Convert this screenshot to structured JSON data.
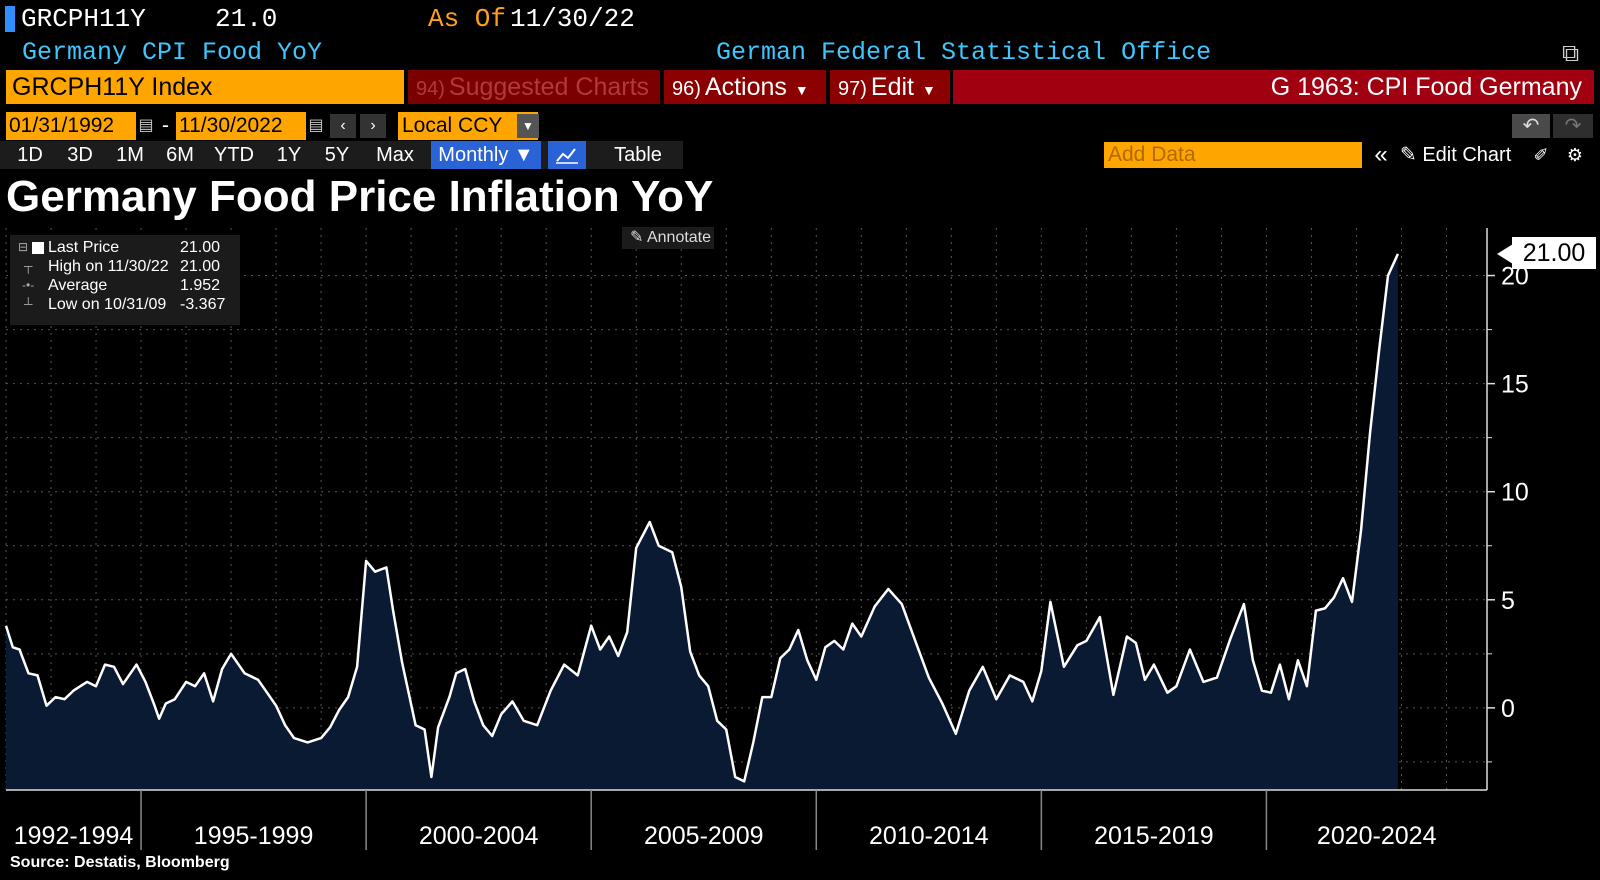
{
  "header": {
    "ticker": "GRCPH11Y",
    "last_value": "21.0",
    "as_of_label": "As Of",
    "as_of_date": "11/30/22",
    "description": "Germany CPI Food YoY",
    "source_org": "German Federal Statistical Office"
  },
  "menu": {
    "security": "GRCPH11Y Index",
    "suggested_num": "94)",
    "suggested": "Suggested Charts",
    "actions_num": "96)",
    "actions": "Actions",
    "edit_num": "97)",
    "edit": "Edit",
    "chart_id": "G 1963: CPI Food Germany"
  },
  "controls": {
    "start_date": "01/31/1992",
    "end_date": "11/30/2022",
    "currency": "Local CCY",
    "timeframes": [
      "1D",
      "3D",
      "1M",
      "6M",
      "YTD",
      "1Y",
      "5Y",
      "Max"
    ],
    "frequency": "Monthly ▼",
    "table": "Table",
    "add_data_placeholder": "Add Data",
    "edit_chart": "Edit Chart"
  },
  "legend": {
    "last_price_label": "Last Price",
    "last_price": "21.00",
    "high_label": "High on 11/30/22",
    "high": "21.00",
    "avg_label": "Average",
    "avg": "1.952",
    "low_label": "Low on 10/31/09",
    "low": "-3.367"
  },
  "annotate": "Annotate",
  "last_value_label": "21.00",
  "footer": "Source: Destatis, Bloomberg",
  "colors": {
    "fill": "#0a1a33",
    "line": "#ffffff",
    "orange": "#ffa500",
    "accent_blue": "#2a63d6"
  },
  "chart_data": {
    "type": "area",
    "title": "Germany Food Price Inflation YoY",
    "xlabel": "",
    "ylabel": "",
    "ylim": [
      -3.8,
      22.2
    ],
    "xlim": [
      1992.0,
      2024.9
    ],
    "yticks": [
      0,
      5,
      10,
      15,
      20
    ],
    "x_period_labels": [
      "1992-1994",
      "1995-1999",
      "2000-2004",
      "2005-2009",
      "2010-2014",
      "2015-2019",
      "2020-2024"
    ],
    "x_period_starts": [
      1992,
      1995,
      2000,
      2005,
      2010,
      2015,
      2020,
      2025
    ],
    "series": [
      {
        "name": "Last Price",
        "x": [
          1992.0,
          1992.15,
          1992.3,
          1992.5,
          1992.7,
          1992.9,
          1993.1,
          1993.3,
          1993.5,
          1993.8,
          1994.0,
          1994.2,
          1994.4,
          1994.6,
          1994.9,
          1995.1,
          1995.3,
          1995.4,
          1995.55,
          1995.75,
          1996.0,
          1996.2,
          1996.4,
          1996.6,
          1996.8,
          1997.0,
          1997.3,
          1997.6,
          1997.8,
          1998.0,
          1998.2,
          1998.4,
          1998.7,
          1999.0,
          1999.2,
          1999.4,
          1999.6,
          1999.8,
          2000.0,
          2000.2,
          2000.45,
          2000.6,
          2000.8,
          2001.1,
          2001.3,
          2001.45,
          2001.6,
          2001.85,
          2002.0,
          2002.2,
          2002.4,
          2002.6,
          2002.8,
          2003.0,
          2003.25,
          2003.5,
          2003.8,
          2004.1,
          2004.4,
          2004.7,
          2005.0,
          2005.2,
          2005.4,
          2005.6,
          2005.8,
          2006.0,
          2006.3,
          2006.5,
          2006.8,
          2007.0,
          2007.2,
          2007.4,
          2007.6,
          2007.8,
          2008.0,
          2008.2,
          2008.4,
          2008.6,
          2008.8,
          2009.0,
          2009.2,
          2009.4,
          2009.6,
          2009.8,
          2010.0,
          2010.2,
          2010.4,
          2010.6,
          2010.8,
          2011.0,
          2011.3,
          2011.6,
          2011.9,
          2012.2,
          2012.5,
          2012.8,
          2013.1,
          2013.4,
          2013.7,
          2014.0,
          2014.3,
          2014.6,
          2014.8,
          2015.0,
          2015.2,
          2015.5,
          2015.8,
          2016.0,
          2016.3,
          2016.6,
          2016.9,
          2017.1,
          2017.3,
          2017.5,
          2017.8,
          2018.0,
          2018.3,
          2018.6,
          2018.9,
          2019.2,
          2019.5,
          2019.7,
          2019.9,
          2020.1,
          2020.3,
          2020.5,
          2020.7,
          2020.9,
          2021.1,
          2021.3,
          2021.5,
          2021.7,
          2021.9,
          2022.1,
          2022.3,
          2022.5,
          2022.7,
          2022.92
        ],
        "values": [
          3.8,
          2.8,
          2.7,
          1.6,
          1.5,
          0.1,
          0.5,
          0.4,
          0.8,
          1.2,
          1.0,
          2.0,
          1.9,
          1.1,
          2.0,
          1.2,
          0.1,
          -0.5,
          0.2,
          0.4,
          1.2,
          1.0,
          1.6,
          0.3,
          1.8,
          2.5,
          1.6,
          1.3,
          0.7,
          0.1,
          -0.8,
          -1.4,
          -1.6,
          -1.4,
          -0.9,
          -0.1,
          0.5,
          1.9,
          6.8,
          6.3,
          6.5,
          4.5,
          2.1,
          -0.8,
          -1.0,
          -3.2,
          -0.9,
          0.5,
          1.6,
          1.8,
          0.3,
          -0.8,
          -1.3,
          -0.3,
          0.3,
          -0.6,
          -0.8,
          0.8,
          2.0,
          1.5,
          3.8,
          2.7,
          3.3,
          2.4,
          3.5,
          7.4,
          8.6,
          7.5,
          7.2,
          5.6,
          2.6,
          1.5,
          1.0,
          -0.6,
          -1.0,
          -3.2,
          -3.4,
          -1.6,
          0.5,
          0.5,
          2.3,
          2.7,
          3.6,
          2.2,
          1.3,
          2.8,
          3.1,
          2.7,
          3.9,
          3.3,
          4.7,
          5.5,
          4.8,
          3.1,
          1.4,
          0.2,
          -1.2,
          0.8,
          1.9,
          0.4,
          1.5,
          1.2,
          0.3,
          1.7,
          4.9,
          1.9,
          2.9,
          3.1,
          4.2,
          0.6,
          3.3,
          3.0,
          1.3,
          2.0,
          0.7,
          1.0,
          2.7,
          1.2,
          1.4,
          3.2,
          4.8,
          2.2,
          0.8,
          0.7,
          2.0,
          0.4,
          2.2,
          1.0,
          4.5,
          4.6,
          5.1,
          6.0,
          4.9,
          8.2,
          12.7,
          16.5,
          20.0,
          21.0
        ]
      }
    ]
  }
}
